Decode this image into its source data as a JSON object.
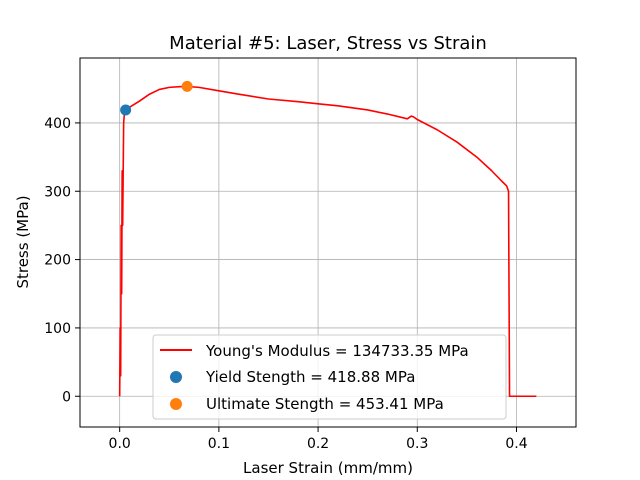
{
  "chart_data": {
    "type": "line",
    "title": "Material #5: Laser, Stress vs Strain",
    "xlabel": "Laser Strain (mm/mm)",
    "ylabel": "Stress (MPa)",
    "xlim": [
      -0.04,
      0.46
    ],
    "ylim": [
      -45,
      495
    ],
    "xticks": [
      0.0,
      0.1,
      0.2,
      0.3,
      0.4
    ],
    "xtick_labels": [
      "0.0",
      "0.1",
      "0.2",
      "0.3",
      "0.4"
    ],
    "yticks": [
      0,
      100,
      200,
      300,
      400
    ],
    "ytick_labels": [
      "0",
      "100",
      "200",
      "300",
      "400"
    ],
    "grid": true,
    "legend_placement": "lower center",
    "series": [
      {
        "name": "Young's Modulus = 134733.35 MPa",
        "kind": "line",
        "color": "#ff0000",
        "x": [
          0.0,
          0.0005,
          0.001,
          0.0015,
          0.002,
          0.0025,
          0.003,
          0.004,
          0.005,
          0.006,
          0.01,
          0.02,
          0.03,
          0.04,
          0.05,
          0.06,
          0.068,
          0.08,
          0.1,
          0.12,
          0.15,
          0.18,
          0.2,
          0.22,
          0.25,
          0.27,
          0.29,
          0.294,
          0.296,
          0.3,
          0.32,
          0.34,
          0.36,
          0.375,
          0.385,
          0.39,
          0.392,
          0.393,
          0.395,
          0.42
        ],
        "y": [
          0,
          100,
          30,
          250,
          150,
          330,
          250,
          400,
          418.88,
          420,
          423,
          432,
          442,
          449,
          452,
          453,
          453.41,
          452,
          447,
          442,
          435,
          431,
          428,
          425,
          419,
          413,
          406,
          410,
          409,
          405,
          390,
          372,
          350,
          330,
          315,
          308,
          300,
          0,
          0,
          0
        ]
      },
      {
        "name": "Yield Stength = 418.88 MPa",
        "kind": "scatter",
        "color": "#1f77b4",
        "x": [
          0.006
        ],
        "y": [
          418.88
        ]
      },
      {
        "name": "Ultimate Stength = 453.41 MPa",
        "kind": "scatter",
        "color": "#ff7f0e",
        "x": [
          0.068
        ],
        "y": [
          453.41
        ]
      }
    ]
  }
}
